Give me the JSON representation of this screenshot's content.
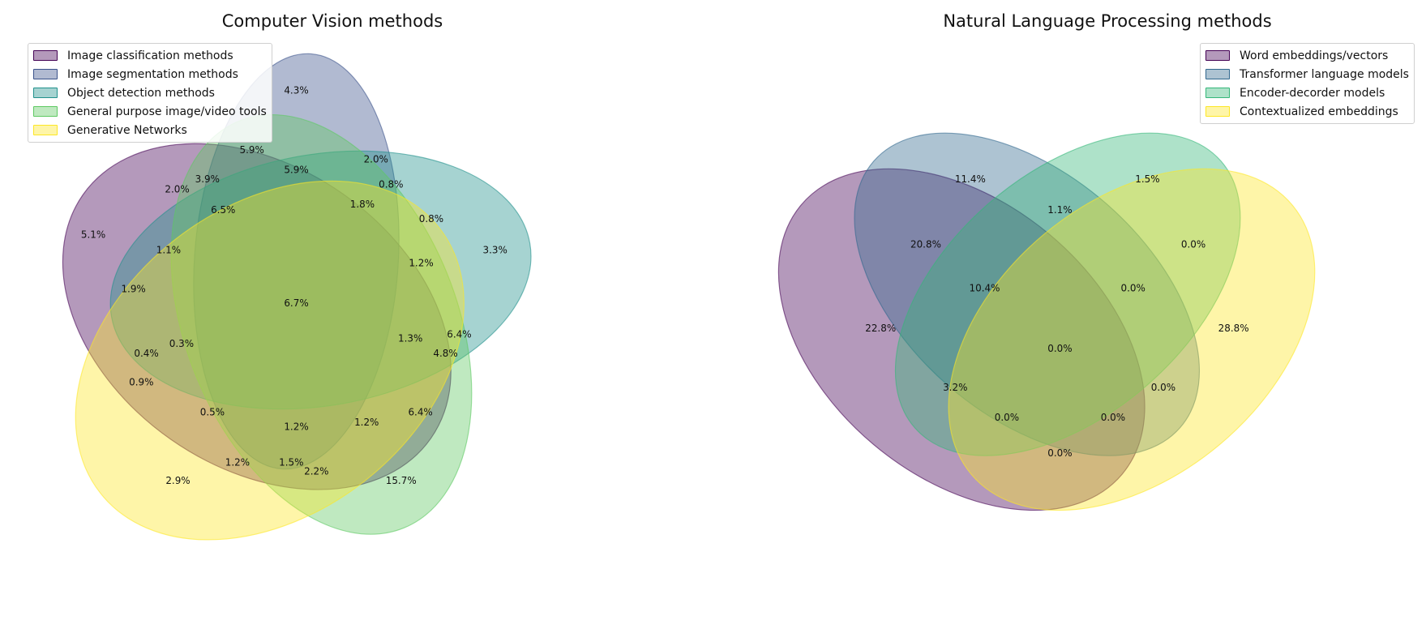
{
  "panels": {
    "cv": {
      "title": "Computer Vision methods",
      "sets": [
        {
          "name": "Image classification methods",
          "color": "#440154"
        },
        {
          "name": "Image segmentation methods",
          "color": "#3b528b"
        },
        {
          "name": "Object detection methods",
          "color": "#21918c"
        },
        {
          "name": "General purpose image/video tools",
          "color": "#5ec962"
        },
        {
          "name": "Generative Networks",
          "color": "#fde725"
        }
      ],
      "labels": [
        "4.3%",
        "5.9%",
        "2.0%",
        "5.9%",
        "3.9%",
        "2.0%",
        "0.8%",
        "6.5%",
        "1.8%",
        "0.8%",
        "5.1%",
        "1.1%",
        "3.3%",
        "1.2%",
        "1.9%",
        "6.7%",
        "6.4%",
        "0.3%",
        "1.3%",
        "4.8%",
        "0.4%",
        "0.9%",
        "0.5%",
        "1.2%",
        "1.2%",
        "6.4%",
        "1.2%",
        "1.5%",
        "2.2%",
        "2.9%",
        "15.7%"
      ]
    },
    "nlp": {
      "title": "Natural Language Processing methods",
      "sets": [
        {
          "name": "Word embeddings/vectors",
          "color": "#440154"
        },
        {
          "name": "Transformer language models",
          "color": "#31688e"
        },
        {
          "name": "Encoder-decorder models",
          "color": "#35b779"
        },
        {
          "name": "Contextualized embeddings",
          "color": "#fde725"
        }
      ],
      "labels": [
        "11.4%",
        "1.5%",
        "1.1%",
        "20.8%",
        "0.0%",
        "10.4%",
        "0.0%",
        "22.8%",
        "0.0%",
        "28.8%",
        "3.2%",
        "0.0%",
        "0.0%",
        "0.0%",
        "0.0%"
      ]
    }
  }
}
